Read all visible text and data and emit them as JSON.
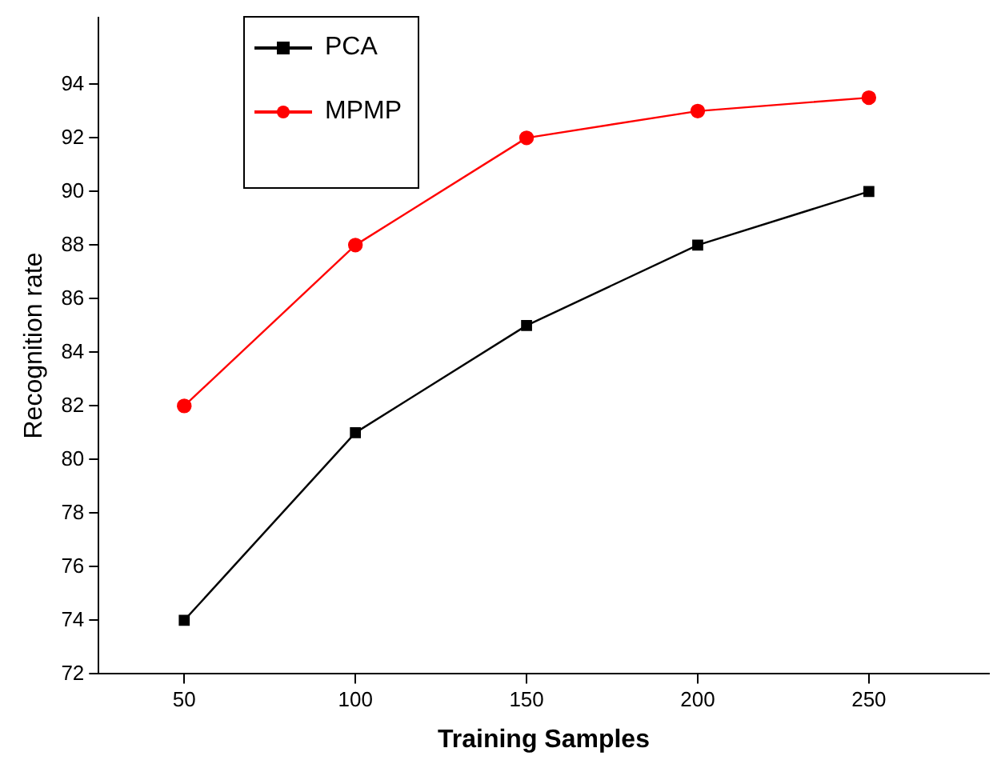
{
  "chart_data": {
    "type": "line",
    "xlabel": "Training Samples",
    "ylabel": "Recognition rate",
    "x": [
      50,
      100,
      150,
      200,
      250
    ],
    "series": [
      {
        "name": "PCA",
        "color": "#000000",
        "values": [
          74,
          81,
          85,
          88,
          90
        ],
        "marker": "square"
      },
      {
        "name": "MPMP",
        "color": "#ff0000",
        "values": [
          82,
          88,
          92,
          93,
          93.5
        ],
        "marker": "circle"
      }
    ],
    "xlim": [
      25,
      285
    ],
    "xticks": [
      50,
      100,
      150,
      200,
      250
    ],
    "ylim": [
      72,
      96.5
    ],
    "yticks": [
      72,
      74,
      76,
      78,
      80,
      82,
      84,
      86,
      88,
      90,
      92,
      94
    ],
    "grid": false,
    "legend": "top left",
    "line_style": "solid"
  }
}
